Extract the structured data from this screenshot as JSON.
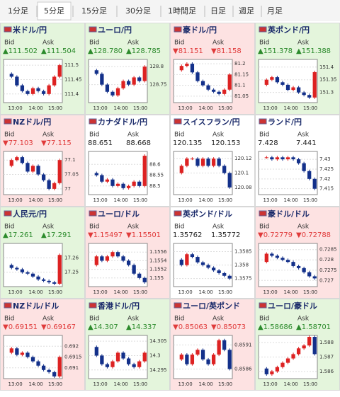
{
  "tabs": [
    "1分足",
    "5分足",
    "15分足",
    "30分足",
    "1時間足",
    "日足",
    "週足",
    "月足"
  ],
  "selected_tab": 1,
  "labels": {
    "bid": "Bid",
    "ask": "Ask"
  },
  "time_labels": [
    "13:00",
    "14:00",
    "15:00"
  ],
  "tiles": [
    {
      "name": "米ドル/円",
      "trend": "up",
      "bid": "▲111.502",
      "ask": "▲111.504",
      "ylim": [
        111.37,
        111.52
      ],
      "yticks": [
        111.5,
        111.45,
        111.4
      ],
      "closes": [
        111.47,
        111.46,
        111.43,
        111.41,
        111.4,
        111.42,
        111.41,
        111.4,
        111.43,
        111.46,
        111.5
      ]
    },
    {
      "name": "ユーロ/円",
      "trend": "up",
      "bid": "▲128.780",
      "ask": "▲128.785",
      "ylim": [
        128.7,
        128.82
      ],
      "yticks": [
        128.8,
        128.75
      ],
      "closes": [
        128.79,
        128.78,
        128.75,
        128.73,
        128.72,
        128.74,
        128.76,
        128.75,
        128.77,
        128.76,
        128.8
      ]
    },
    {
      "name": "豪ドル/円",
      "trend": "down",
      "bid": "▼81.151",
      "ask": "▼81.158",
      "ylim": [
        81.02,
        81.22
      ],
      "yticks": [
        81.2,
        81.15,
        81.1,
        81.05
      ],
      "closes": [
        81.17,
        81.19,
        81.2,
        81.16,
        81.12,
        81.1,
        81.08,
        81.07,
        81.06,
        81.08,
        81.15
      ]
    },
    {
      "name": "英ポンド/円",
      "trend": "up",
      "bid": "▲151.378",
      "ask": "▲151.388",
      "ylim": [
        151.26,
        151.43
      ],
      "yticks": [
        151.4,
        151.35,
        151.3
      ],
      "closes": [
        151.33,
        151.35,
        151.36,
        151.34,
        151.33,
        151.31,
        151.32,
        151.3,
        151.29,
        151.28,
        151.38
      ]
    },
    {
      "name": "NZドル/円",
      "trend": "down",
      "bid": "▼77.103",
      "ask": "▼77.115",
      "ylim": [
        76.98,
        77.13
      ],
      "yticks": [
        77.1,
        77.05,
        77
      ],
      "closes": [
        77.08,
        77.1,
        77.11,
        77.09,
        77.06,
        77.08,
        77.05,
        77.03,
        77.0,
        77.02,
        77.1
      ]
    },
    {
      "name": "カナダドル/円",
      "trend": "flat",
      "bid": "88.651",
      "ask": "88.668",
      "ylim": [
        88.46,
        88.66
      ],
      "yticks": [
        88.6,
        88.55,
        88.5
      ],
      "closes": [
        88.56,
        88.55,
        88.52,
        88.53,
        88.5,
        88.51,
        88.49,
        88.5,
        88.52,
        88.5,
        88.64
      ]
    },
    {
      "name": "スイスフラン/円",
      "trend": "flat",
      "bid": "120.135",
      "ask": "120.153",
      "ylim": [
        120.07,
        120.13
      ],
      "yticks": [
        120.12,
        120.1,
        120.08
      ],
      "closes": [
        120.1,
        120.11,
        120.12,
        120.12,
        120.11,
        120.12,
        120.11,
        120.12,
        120.11,
        120.1,
        120.08
      ]
    },
    {
      "name": "ランド/円",
      "trend": "flat",
      "bid": "7.428",
      "ask": "7.441",
      "ylim": [
        7.412,
        7.434
      ],
      "yticks": [
        7.43,
        7.425,
        7.42,
        7.415
      ],
      "closes": [
        7.431,
        7.431,
        7.43,
        7.431,
        7.43,
        7.431,
        7.43,
        7.428,
        7.424,
        7.42,
        7.415
      ]
    },
    {
      "name": "人民元/円",
      "trend": "up",
      "bid": "▲17.261",
      "ask": "▲17.291",
      "ylim": [
        17.24,
        17.27
      ],
      "yticks": [
        17.26,
        17.25
      ],
      "closes": [
        17.255,
        17.253,
        17.252,
        17.25,
        17.249,
        17.247,
        17.245,
        17.244,
        17.243,
        17.242,
        17.262
      ]
    },
    {
      "name": "ユーロ/ドル",
      "trend": "down",
      "bid": "▼1.15497",
      "ask": "▼1.15501",
      "ylim": [
        1.1548,
        1.1558
      ],
      "yticks": [
        1.1556,
        1.1554,
        1.1552,
        1.155
      ],
      "closes": [
        1.1553,
        1.1555,
        1.1554,
        1.1555,
        1.1556,
        1.1555,
        1.1554,
        1.1553,
        1.1551,
        1.155,
        1.1549
      ]
    },
    {
      "name": "英ポンド/ドル",
      "trend": "flat",
      "bid": "1.35762",
      "ask": "1.35772",
      "ylim": [
        1.3572,
        1.3588
      ],
      "yticks": [
        1.3585,
        1.358,
        1.3575
      ],
      "closes": [
        1.3582,
        1.358,
        1.3584,
        1.3583,
        1.3581,
        1.358,
        1.3579,
        1.3578,
        1.3577,
        1.3576,
        1.3575
      ]
    },
    {
      "name": "豪ドル/ドル",
      "trend": "down",
      "bid": "▼0.72779",
      "ask": "▼0.72788",
      "ylim": [
        0.7267,
        0.7288
      ],
      "yticks": [
        0.7285,
        0.728,
        0.7275,
        0.727
      ],
      "closes": [
        0.7279,
        0.7283,
        0.7282,
        0.7281,
        0.728,
        0.7279,
        0.7277,
        0.7276,
        0.7274,
        0.7272,
        0.7271
      ]
    },
    {
      "name": "NZドル/ドル",
      "trend": "down",
      "bid": "▼0.69151",
      "ask": "▼0.69167",
      "ylim": [
        0.6905,
        0.6925
      ],
      "yticks": [
        0.692,
        0.6915,
        0.691
      ],
      "closes": [
        0.6917,
        0.6919,
        0.6916,
        0.6917,
        0.6915,
        0.6913,
        0.6911,
        0.6909,
        0.6908,
        0.6906,
        0.6915
      ]
    },
    {
      "name": "香港ドル/円",
      "trend": "up",
      "bid": "▲14.307",
      "ask": "▲14.337",
      "ylim": [
        14.292,
        14.307
      ],
      "yticks": [
        14.305,
        14.3,
        14.295
      ],
      "closes": [
        14.303,
        14.3,
        14.297,
        14.296,
        14.298,
        14.301,
        14.299,
        14.297,
        14.296,
        14.298,
        14.301
      ]
    },
    {
      "name": "ユーロ/英ポンド",
      "trend": "down",
      "bid": "▼0.85063",
      "ask": "▼0.85073",
      "ylim": [
        0.8584,
        0.8593
      ],
      "yticks": [
        0.8591,
        0.8586
      ],
      "closes": [
        0.8588,
        0.8589,
        0.8587,
        0.8589,
        0.859,
        0.8588,
        0.8587,
        0.8589,
        0.8592,
        0.859,
        0.8586
      ]
    },
    {
      "name": "ユーロ/豪ドル",
      "trend": "up",
      "bid": "▲1.58686",
      "ask": "▲1.58701",
      "ylim": [
        1.5855,
        1.5885
      ],
      "yticks": [
        1.588,
        1.587,
        1.586
      ],
      "closes": [
        1.5862,
        1.5858,
        1.586,
        1.5863,
        1.5866,
        1.5869,
        1.5872,
        1.5876,
        1.5878,
        1.5884,
        1.5872
      ]
    }
  ]
}
